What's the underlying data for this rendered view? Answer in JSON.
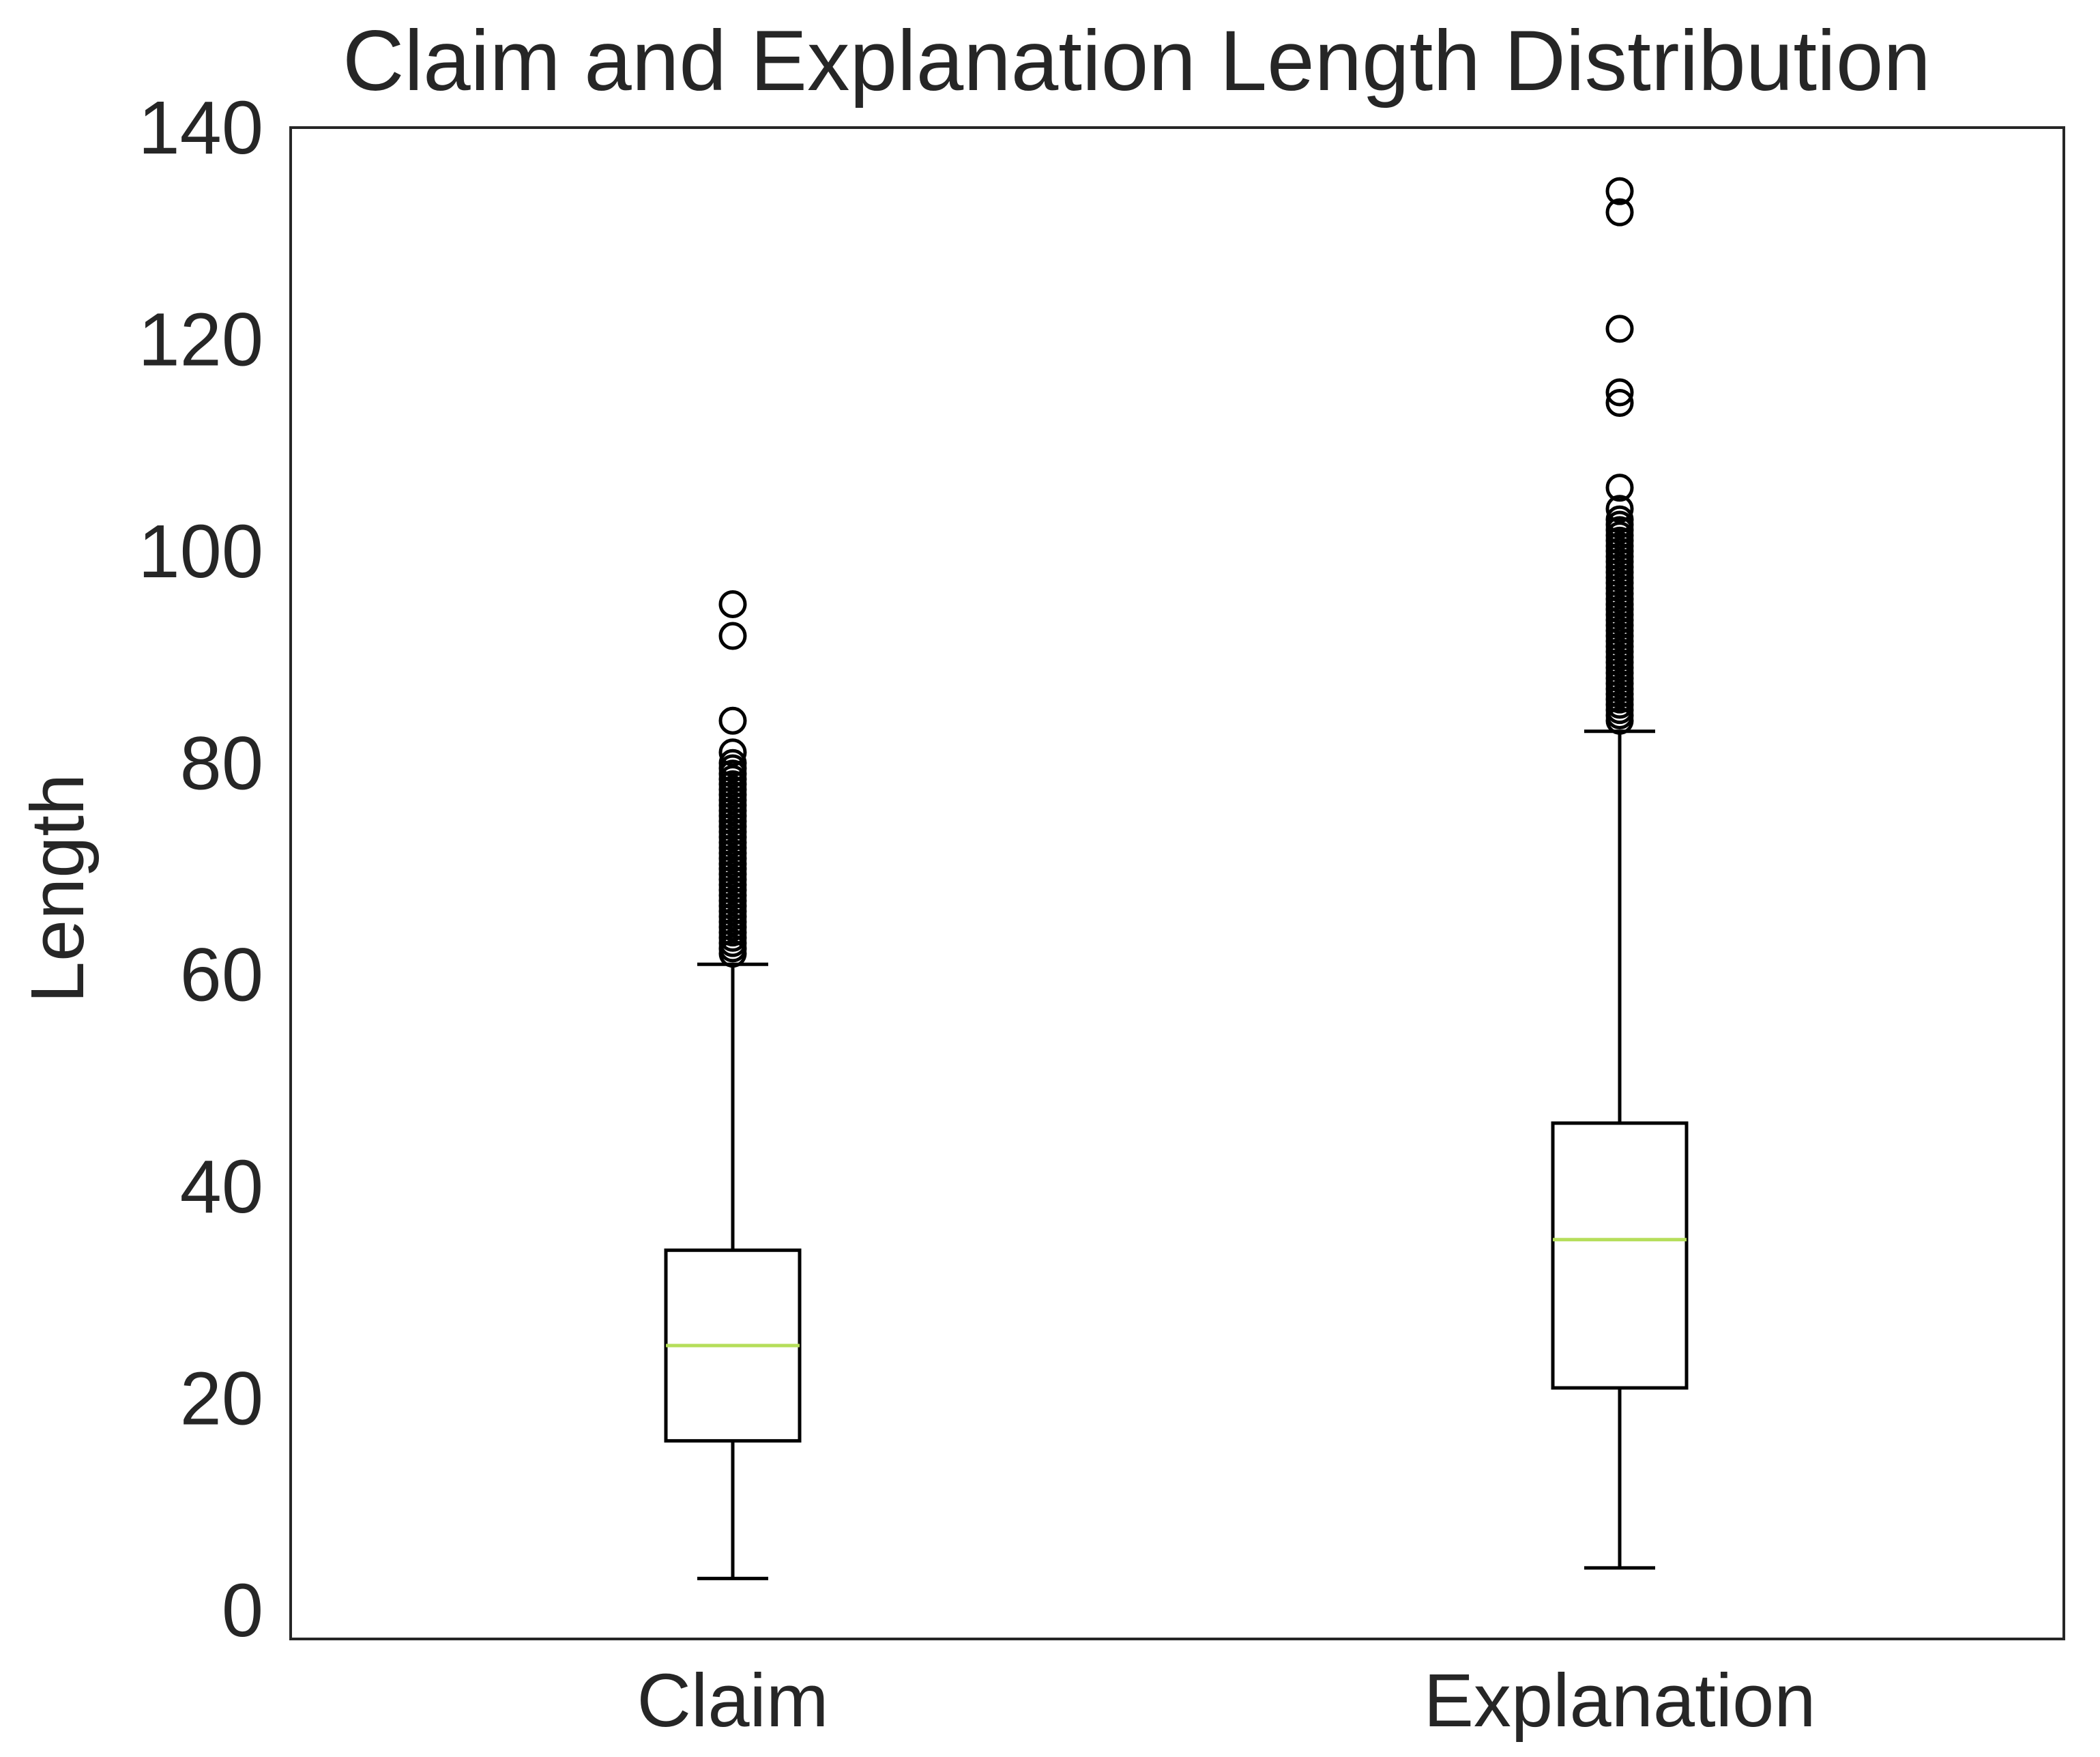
{
  "chart_data": {
    "type": "box",
    "title": "Claim and Explanation Length Distribution",
    "xlabel": "",
    "ylabel": "Length",
    "ylim": [
      -3,
      140
    ],
    "yticks": [
      0,
      20,
      40,
      60,
      80,
      100,
      120,
      140
    ],
    "grid": false,
    "colors": {
      "box": "#000000",
      "median": "#b5de5a",
      "text": "#262626",
      "axes": "#262626"
    },
    "categories": [
      "Claim",
      "Explanation"
    ],
    "boxes": [
      {
        "label": "Claim",
        "whisker_low": 3,
        "q1": 16,
        "median": 25,
        "q3": 34,
        "whisker_high": 61,
        "outliers": [
          62,
          62.5,
          63,
          63.5,
          64,
          64.5,
          65,
          65.5,
          66,
          66.5,
          67,
          67.5,
          68,
          68.5,
          69,
          69.5,
          70,
          70.5,
          71,
          71.5,
          72,
          72.5,
          73,
          73.5,
          74,
          74.5,
          75,
          75.5,
          76,
          76.5,
          77,
          77.5,
          78,
          78.5,
          79,
          79.5,
          80,
          81,
          84,
          92,
          95
        ]
      },
      {
        "label": "Explanation",
        "whisker_low": 4,
        "q1": 21,
        "median": 35,
        "q3": 46,
        "whisker_high": 83,
        "outliers": [
          84,
          84.5,
          85,
          85.5,
          86,
          86.5,
          87,
          87.5,
          88,
          88.5,
          89,
          89.5,
          90,
          90.5,
          91,
          91.5,
          92,
          92.5,
          93,
          93.5,
          94,
          94.5,
          95,
          95.5,
          96,
          96.5,
          97,
          97.5,
          98,
          98.5,
          99,
          99.5,
          100,
          100.5,
          101,
          101.5,
          102,
          102.5,
          103,
          104,
          106,
          114,
          115,
          121,
          132,
          134
        ]
      }
    ]
  }
}
